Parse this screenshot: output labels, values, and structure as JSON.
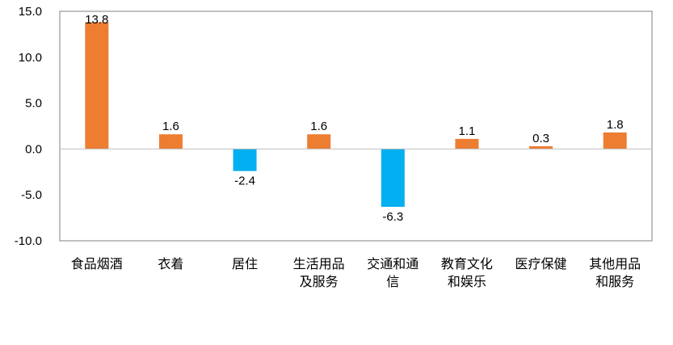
{
  "chart_data": {
    "type": "bar",
    "categories": [
      [
        "食品烟酒"
      ],
      [
        "衣着"
      ],
      [
        "居住"
      ],
      [
        "生活用品",
        "及服务"
      ],
      [
        "交通和通",
        "信"
      ],
      [
        "教育文化",
        "和娱乐"
      ],
      [
        "医疗保健"
      ],
      [
        "其他用品",
        "和服务"
      ]
    ],
    "values": [
      13.8,
      1.6,
      -2.4,
      1.6,
      -6.3,
      1.1,
      0.3,
      1.8
    ],
    "value_labels": [
      "13.8",
      "1.6",
      "-2.4",
      "1.6",
      "-6.3",
      "1.1",
      "0.3",
      "1.8"
    ],
    "ylim": [
      -10,
      15
    ],
    "yticks": [
      15,
      10,
      5,
      0,
      -5,
      -10
    ],
    "ytick_labels": [
      "15.0",
      "10.0",
      "5.0",
      "0.0",
      "-5.0",
      "-10.0"
    ],
    "grid": false,
    "colors": {
      "positive": "#ED7D31",
      "negative": "#00B0F0",
      "axis": "#BFBFBF",
      "frame": "#808080"
    }
  }
}
